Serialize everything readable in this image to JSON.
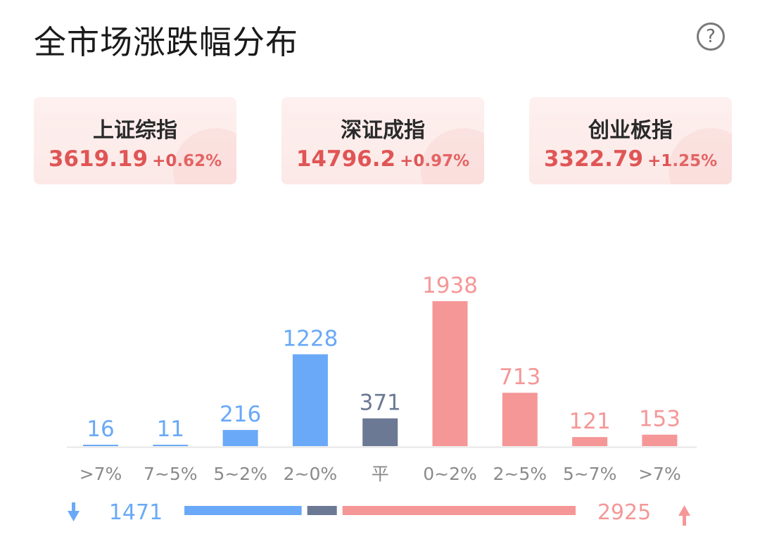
{
  "title": "全市场涨跌幅分布",
  "help_icon": "help-icon",
  "indices": [
    {
      "name": "上证综指",
      "value": "3619.19",
      "change": "+0.62%"
    },
    {
      "name": "深证成指",
      "value": "14796.2",
      "change": "+0.97%"
    },
    {
      "name": "创业板指",
      "value": "3322.79",
      "change": "+1.25%"
    }
  ],
  "colors": {
    "down": "#6aa9f7",
    "flat": "#6b7994",
    "up": "#f59797",
    "text_up": "#e05555"
  },
  "chart_data": {
    "type": "bar",
    "categories": [
      ">7%",
      "7~5%",
      "5~2%",
      "2~0%",
      "平",
      "0~2%",
      "2~5%",
      "5~7%",
      ">7%"
    ],
    "values": [
      16,
      11,
      216,
      1228,
      371,
      1938,
      713,
      121,
      153
    ],
    "groups": [
      "down",
      "down",
      "down",
      "down",
      "flat",
      "up",
      "up",
      "up",
      "up"
    ]
  },
  "summary": {
    "down_total": "1471",
    "up_total": "2925",
    "down_icon": "arrow-down-icon",
    "up_icon": "arrow-up-icon"
  }
}
